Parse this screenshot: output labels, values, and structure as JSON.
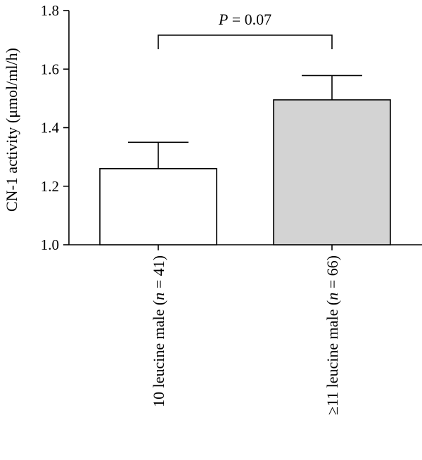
{
  "chart_data": {
    "type": "bar",
    "ylabel": "CN-1 activity (μmol/ml/h)",
    "ylim": [
      1.0,
      1.8
    ],
    "yticks": [
      "1.0",
      "1.2",
      "1.4",
      "1.6",
      "1.8"
    ],
    "grid": false,
    "categories": [
      "10 leucine male (n = 41)",
      "≥11 leucine male (n = 66)"
    ],
    "values": [
      1.26,
      1.495
    ],
    "errors": [
      0.09,
      0.083
    ],
    "bar_colors": [
      "#ffffff",
      "#d3d3d3"
    ],
    "annotation": "P = 0.07"
  }
}
